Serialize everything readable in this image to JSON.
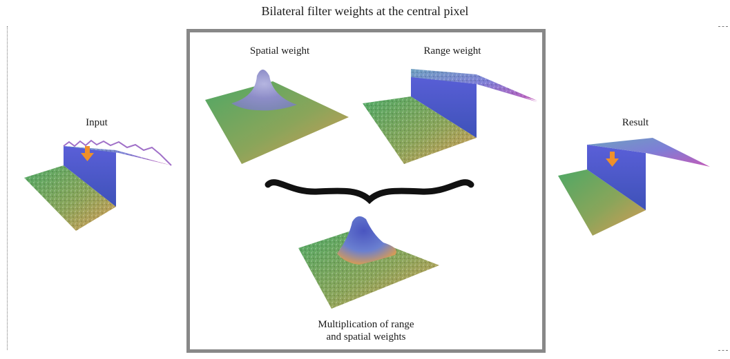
{
  "title": "Bilateral filter weights at the central pixel",
  "panels": {
    "input": "Input",
    "spatial": "Spatial weight",
    "range": "Range weight",
    "product_line1": "Multiplication of range",
    "product_line2": "and spatial weights",
    "result": "Result"
  },
  "colors": {
    "box_border": "#888888",
    "arrow": "#f0902a",
    "surface_green": "#5aa85a",
    "surface_orange": "#d59a55",
    "surface_blue": "#6a6fd0",
    "surface_magenta": "#c05ab8"
  }
}
